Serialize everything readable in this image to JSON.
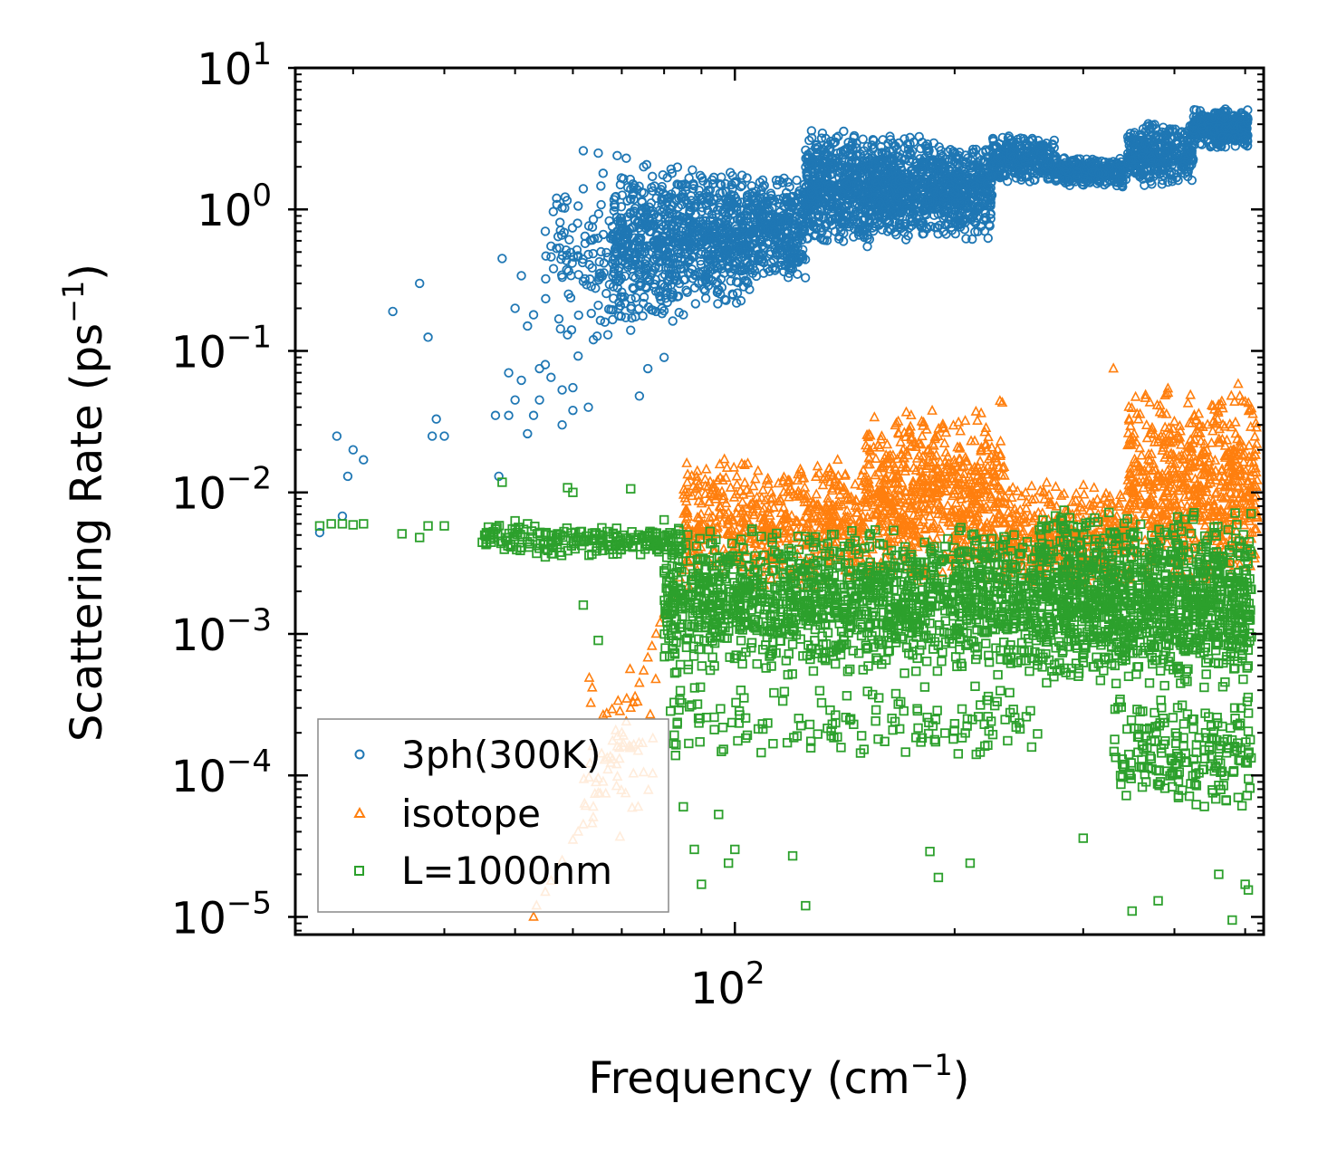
{
  "chart_data": {
    "type": "scatter",
    "xscale": "log",
    "yscale": "log",
    "xlim": [
      25,
      530
    ],
    "ylim": [
      7.5e-06,
      10
    ],
    "xlabel": "Frequency (cm",
    "xlabel_exp": "−1",
    "xlabel_close": ")",
    "ylabel": "Scattering Rate (ps",
    "ylabel_exp": "−1",
    "ylabel_close": ")",
    "x_ticks": [
      {
        "base": "10",
        "exp": "2",
        "value": 100
      }
    ],
    "y_ticks": [
      {
        "base": "10",
        "exp": "1",
        "value": 10
      },
      {
        "base": "10",
        "exp": "0",
        "value": 1
      },
      {
        "base": "10",
        "exp": "−1",
        "value": 0.1
      },
      {
        "base": "10",
        "exp": "−2",
        "value": 0.01
      },
      {
        "base": "10",
        "exp": "−3",
        "value": 0.001
      },
      {
        "base": "10",
        "exp": "−4",
        "value": 0.0001
      },
      {
        "base": "10",
        "exp": "−5",
        "value": 1e-05
      }
    ],
    "legend_position": "lower-left",
    "series": [
      {
        "name": "3ph(300K)",
        "marker": "circle",
        "color": "#1f77b4",
        "points": [
          [
            27,
            0.0052
          ],
          [
            28.5,
            0.025
          ],
          [
            29,
            0.0068
          ],
          [
            29.5,
            0.013
          ],
          [
            30,
            0.02
          ],
          [
            31,
            0.017
          ],
          [
            34,
            0.19
          ],
          [
            37,
            0.3
          ],
          [
            38,
            0.125
          ],
          [
            38.5,
            0.025
          ],
          [
            39,
            0.033
          ],
          [
            40,
            0.025
          ],
          [
            47,
            0.035
          ],
          [
            47.5,
            0.013
          ],
          [
            48,
            0.45
          ],
          [
            49,
            0.07
          ],
          [
            49,
            0.035
          ],
          [
            50,
            0.2
          ],
          [
            50,
            0.045
          ],
          [
            51,
            0.34
          ],
          [
            51,
            0.062
          ],
          [
            52,
            0.15
          ],
          [
            52,
            0.026
          ],
          [
            53,
            0.18
          ],
          [
            53,
            0.035
          ],
          [
            54,
            0.075
          ],
          [
            54,
            0.045
          ],
          [
            55,
            0.7
          ],
          [
            55,
            0.08
          ],
          [
            56,
            0.55
          ],
          [
            56,
            0.065
          ],
          [
            57,
            1.2
          ],
          [
            57,
            0.53
          ],
          [
            58,
            0.03
          ],
          [
            58,
            0.053
          ],
          [
            59,
            0.13
          ],
          [
            60,
            0.055
          ],
          [
            60,
            0.038
          ],
          [
            61,
            0.47
          ],
          [
            61,
            0.092
          ],
          [
            62,
            2.6
          ],
          [
            62,
            1.4
          ],
          [
            62,
            0.31
          ],
          [
            63,
            0.04
          ],
          [
            64,
            0.85
          ],
          [
            64,
            0.12
          ],
          [
            65,
            2.5
          ],
          [
            65,
            0.21
          ],
          [
            66,
            1.8
          ],
          [
            67,
            0.13
          ],
          [
            68,
            0.65
          ],
          [
            69,
            2.4
          ],
          [
            70,
            0.26
          ],
          [
            71,
            2.3
          ],
          [
            72,
            0.14
          ],
          [
            74,
            0.048
          ],
          [
            75,
            2.0
          ],
          [
            76,
            0.075
          ],
          [
            78,
            0.19
          ],
          [
            80,
            0.09
          ],
          [
            82,
            1.8
          ],
          [
            85,
            0.18
          ]
        ],
        "bands": [
          {
            "x": [
              55,
              68
            ],
            "y": [
              0.1,
              2.0
            ],
            "n": 90
          },
          {
            "x": [
              68,
              85
            ],
            "y": [
              0.15,
              2.2
            ],
            "n": 450
          },
          {
            "x": [
              85,
              105
            ],
            "y": [
              0.2,
              2.0
            ],
            "n": 450
          },
          {
            "x": [
              105,
              125
            ],
            "y": [
              0.3,
              1.8
            ],
            "n": 350
          },
          {
            "x": [
              125,
              155
            ],
            "y": [
              0.5,
              4.0
            ],
            "n": 550
          },
          {
            "x": [
              155,
              185
            ],
            "y": [
              0.6,
              3.4
            ],
            "n": 450
          },
          {
            "x": [
              185,
              225
            ],
            "y": [
              0.6,
              3.0
            ],
            "n": 450
          },
          {
            "x": [
              225,
              275
            ],
            "y": [
              1.5,
              3.4
            ],
            "n": 300
          },
          {
            "x": [
              275,
              345
            ],
            "y": [
              1.4,
              2.4
            ],
            "n": 300
          },
          {
            "x": [
              345,
              425
            ],
            "y": [
              1.4,
              4.3
            ],
            "n": 350
          },
          {
            "x": [
              425,
              505
            ],
            "y": [
              2.7,
              5.3
            ],
            "n": 350
          }
        ]
      },
      {
        "name": "isotope",
        "marker": "triangle",
        "color": "#ff7f0e",
        "points": [
          [
            53,
            1e-05
          ],
          [
            53.5,
            1.2e-05
          ],
          [
            55,
            1.5e-05
          ],
          [
            56,
            1.8e-05
          ],
          [
            58,
            2.5e-05
          ],
          [
            60,
            3.5e-05
          ],
          [
            61,
            4e-05
          ],
          [
            62,
            4.5e-05
          ],
          [
            64,
            6e-05
          ],
          [
            65,
            7.5e-05
          ],
          [
            66,
            9e-05
          ],
          [
            67,
            0.00011
          ],
          [
            68,
            0.00013
          ],
          [
            69,
            0.00016
          ],
          [
            70,
            0.0002
          ],
          [
            71,
            0.00024
          ],
          [
            72,
            0.0003
          ],
          [
            73,
            0.00036
          ],
          [
            74,
            0.00045
          ],
          [
            75,
            0.00055
          ],
          [
            76,
            0.00068
          ],
          [
            77,
            0.00082
          ],
          [
            78,
            0.001
          ],
          [
            79,
            0.0012
          ],
          [
            80,
            0.0014
          ],
          [
            82,
            0.0018
          ],
          [
            84,
            0.0025
          ],
          [
            330,
            0.075
          ]
        ],
        "bands": [
          {
            "x": [
              62,
              78
            ],
            "y": [
              3e-05,
              0.0006
            ],
            "n": 60
          },
          {
            "x": [
              85,
              150
            ],
            "y": [
              0.002,
              0.018
            ],
            "n": 600
          },
          {
            "x": [
              150,
              235
            ],
            "y": [
              0.002,
              0.045
            ],
            "n": 700
          },
          {
            "x": [
              235,
              345
            ],
            "y": [
              0.002,
              0.012
            ],
            "n": 400
          },
          {
            "x": [
              345,
              520
            ],
            "y": [
              0.002,
              0.06
            ],
            "n": 700
          }
        ]
      },
      {
        "name": "L=1000nm",
        "marker": "square",
        "color": "#2ca02c",
        "points": [
          [
            27,
            0.0058
          ],
          [
            28,
            0.006
          ],
          [
            29,
            0.006
          ],
          [
            30,
            0.0059
          ],
          [
            31,
            0.006
          ],
          [
            35,
            0.0051
          ],
          [
            37,
            0.0048
          ],
          [
            38,
            0.0058
          ],
          [
            40,
            0.0058
          ],
          [
            47,
            0.0055
          ],
          [
            48,
            0.0118
          ],
          [
            50,
            0.0063
          ],
          [
            52,
            0.006
          ],
          [
            55,
            0.0035
          ],
          [
            59,
            0.0108
          ],
          [
            60,
            0.01
          ],
          [
            62,
            0.0016
          ],
          [
            65,
            0.0009
          ],
          [
            72,
            0.0106
          ],
          [
            80,
            0.0064
          ],
          [
            85,
            6e-05
          ],
          [
            88,
            3e-05
          ],
          [
            90,
            1.7e-05
          ],
          [
            95,
            5.3e-05
          ],
          [
            98,
            2.4e-05
          ],
          [
            100,
            3e-05
          ],
          [
            120,
            2.7e-05
          ],
          [
            125,
            1.2e-05
          ],
          [
            185,
            2.9e-05
          ],
          [
            190,
            1.9e-05
          ],
          [
            210,
            2.4e-05
          ],
          [
            300,
            3.6e-05
          ],
          [
            350,
            1.1e-05
          ],
          [
            380,
            1.3e-05
          ],
          [
            460,
            2e-05
          ],
          [
            500,
            1.7e-05
          ],
          [
            505,
            1.55e-05
          ],
          [
            495,
            6.1e-05
          ],
          [
            480,
            9.5e-06
          ]
        ],
        "bands": [
          {
            "x": [
              45,
              85
            ],
            "y": [
              0.0035,
              0.006
            ],
            "n": 200
          },
          {
            "x": [
              80,
              260
            ],
            "y": [
              0.0005,
              0.006
            ],
            "n": 1400
          },
          {
            "x": [
              80,
              260
            ],
            "y": [
              0.00012,
              0.0005
            ],
            "n": 150
          },
          {
            "x": [
              260,
              510
            ],
            "y": [
              0.0004,
              0.008
            ],
            "n": 1200
          },
          {
            "x": [
              330,
              510
            ],
            "y": [
              5e-05,
              0.0004
            ],
            "n": 200
          }
        ]
      }
    ]
  }
}
